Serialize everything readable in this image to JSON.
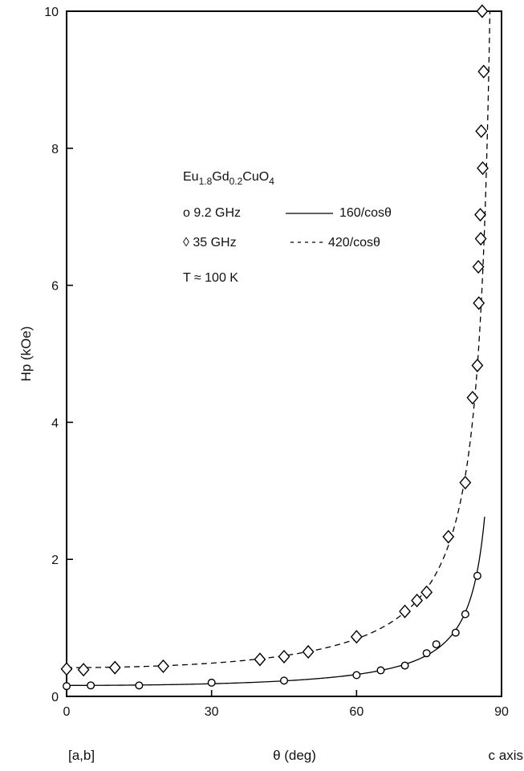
{
  "chart_data": {
    "type": "scatter",
    "title": "",
    "xlabel": "θ  (deg)",
    "ylabel": "Hp (kOe)",
    "xlim": [
      0,
      90
    ],
    "ylim": [
      0,
      10
    ],
    "x_ticks": [
      0,
      30,
      60,
      90
    ],
    "x_tick_labels": [
      "0",
      "30",
      "60",
      "90"
    ],
    "y_ticks": [
      0,
      2,
      4,
      6,
      8,
      10
    ],
    "y_tick_labels": [
      "0",
      "2",
      "4",
      "6",
      "8",
      "10"
    ],
    "x_end_labels": {
      "left": "[a,b]",
      "right": "c axis"
    },
    "grid": false,
    "legend_position": "upper-left",
    "legend": {
      "sample": "Eu1.8Gd0.2CuO4",
      "sample_parts": [
        {
          "text": "Eu",
          "sub": false
        },
        {
          "text": "1.8",
          "sub": true
        },
        {
          "text": "Gd",
          "sub": false
        },
        {
          "text": "0.2",
          "sub": true
        },
        {
          "text": "CuO",
          "sub": false
        },
        {
          "text": "4",
          "sub": true
        }
      ],
      "entries": [
        {
          "marker_label": "o 9.2 GHz",
          "line_label": "160/cosθ"
        },
        {
          "marker_label": "◊ 35  GHz",
          "line_label": "420/cosθ"
        }
      ],
      "condition": "T ≈ 100 K"
    },
    "series": [
      {
        "name": "9.2 GHz",
        "marker": "circle",
        "points": [
          [
            0,
            0.15
          ],
          [
            5,
            0.16
          ],
          [
            15,
            0.16
          ],
          [
            30,
            0.2
          ],
          [
            45,
            0.23
          ],
          [
            60,
            0.31
          ],
          [
            65,
            0.38
          ],
          [
            70,
            0.45
          ],
          [
            74.5,
            0.63
          ],
          [
            76.5,
            0.76
          ],
          [
            80.5,
            0.93
          ],
          [
            82.5,
            1.2
          ],
          [
            85,
            1.76
          ]
        ]
      },
      {
        "name": "35 GHz",
        "marker": "diamond",
        "points": [
          [
            0,
            0.4
          ],
          [
            3.5,
            0.39
          ],
          [
            10,
            0.42
          ],
          [
            20,
            0.44
          ],
          [
            40,
            0.54
          ],
          [
            45,
            0.58
          ],
          [
            50,
            0.65
          ],
          [
            60,
            0.87
          ],
          [
            70,
            1.24
          ],
          [
            72.5,
            1.4
          ],
          [
            74.5,
            1.52
          ],
          [
            79,
            2.33
          ],
          [
            82.5,
            3.12
          ],
          [
            84,
            4.36
          ],
          [
            85,
            4.83
          ],
          [
            85.3,
            5.74
          ],
          [
            85.2,
            6.27
          ],
          [
            85.7,
            6.68
          ],
          [
            85.6,
            7.03
          ],
          [
            86.1,
            7.71
          ],
          [
            85.8,
            8.25
          ],
          [
            86.3,
            9.12
          ],
          [
            86,
            10
          ]
        ]
      }
    ],
    "fit_curves": [
      {
        "label": "160/cosθ",
        "style": "solid",
        "a_kOe": 0.16,
        "x_range": [
          0,
          86.5
        ]
      },
      {
        "label": "420/cosθ",
        "style": "dashed",
        "a_kOe": 0.42,
        "x_range": [
          0,
          87.6
        ]
      }
    ]
  }
}
